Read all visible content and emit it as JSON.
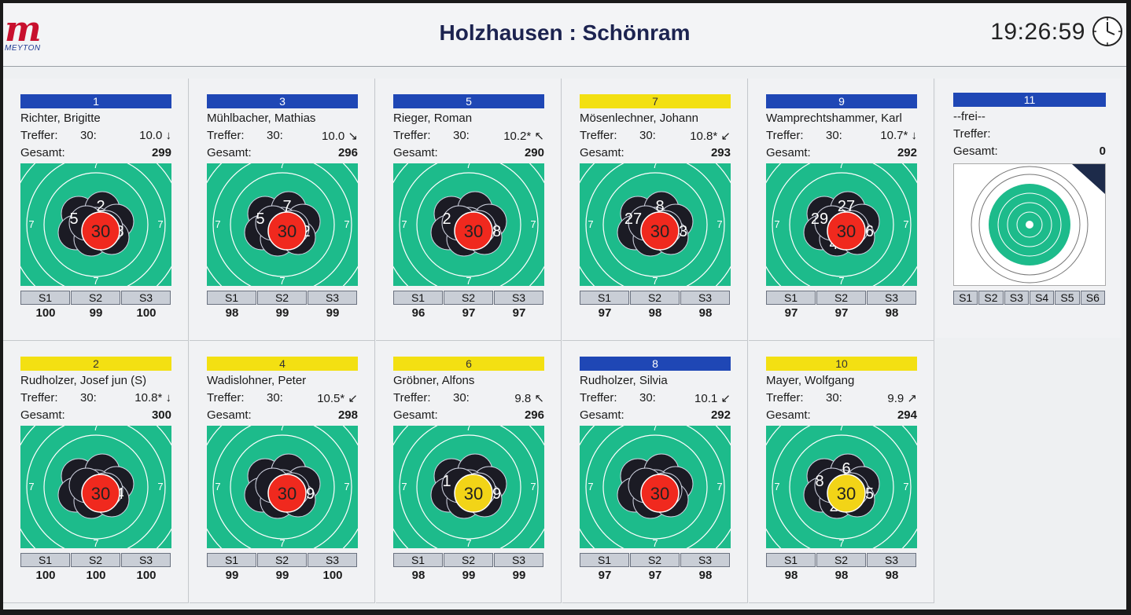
{
  "header": {
    "logo_letter": "m",
    "logo_text": "MEYTON",
    "title": "Holzhausen : Schönram",
    "clock": "19:26:59"
  },
  "colors": {
    "blue_lane": "#1f47b5",
    "yellow_lane": "#f3e012",
    "target_green": "#1dbb8b",
    "shot_dark": "#1b1b24",
    "shot_red": "#f0291e",
    "shot_yellow": "#f2d417"
  },
  "labels": {
    "treffer": "Treffer:",
    "gesamt": "Gesamt:"
  },
  "lanes": [
    {
      "lane": "1",
      "color": "blue",
      "name": "Richter, Brigitte",
      "count": "30:",
      "last": "10.0",
      "arrow": "↓",
      "total": "299",
      "series": [
        "S1",
        "S2",
        "S3"
      ],
      "scores": [
        "100",
        "99",
        "100"
      ],
      "shot_numbers": [
        "30",
        "8",
        "5",
        "2"
      ],
      "last_shot": "30",
      "last_color": "red"
    },
    {
      "lane": "3",
      "color": "blue",
      "name": "Mühlbacher, Mathias",
      "count": "30:",
      "last": "10.0",
      "arrow": "↘",
      "total": "296",
      "series": [
        "S1",
        "S2",
        "S3"
      ],
      "scores": [
        "98",
        "99",
        "99"
      ],
      "shot_numbers": [
        "30",
        "2",
        "5",
        "7"
      ],
      "last_shot": "30",
      "last_color": "red"
    },
    {
      "lane": "5",
      "color": "blue",
      "name": "Rieger, Roman",
      "count": "30:",
      "last": "10.2*",
      "arrow": "↖",
      "total": "290",
      "series": [
        "S1",
        "S2",
        "S3"
      ],
      "scores": [
        "96",
        "97",
        "97"
      ],
      "shot_numbers": [
        "30",
        "28",
        "2"
      ],
      "last_shot": "30",
      "last_color": "red"
    },
    {
      "lane": "7",
      "color": "yellow",
      "name": "Mösenlechner, Johann",
      "count": "30:",
      "last": "10.8*",
      "arrow": "↙",
      "total": "293",
      "series": [
        "S1",
        "S2",
        "S3"
      ],
      "scores": [
        "97",
        "98",
        "98"
      ],
      "shot_numbers": [
        "30",
        "23",
        "27",
        "8"
      ],
      "last_shot": "30",
      "last_color": "red"
    },
    {
      "lane": "9",
      "color": "blue",
      "name": "Wamprechtshammer, Karl",
      "count": "30:",
      "last": "10.7*",
      "arrow": "↓",
      "total": "292",
      "series": [
        "S1",
        "S2",
        "S3"
      ],
      "scores": [
        "97",
        "97",
        "98"
      ],
      "shot_numbers": [
        "30",
        "26",
        "29",
        "27",
        "4"
      ],
      "last_shot": "30",
      "last_color": "red"
    },
    {
      "lane": "2",
      "color": "yellow",
      "name": "Rudholzer, Josef jun (S)",
      "count": "30:",
      "last": "10.8*",
      "arrow": "↓",
      "total": "300",
      "series": [
        "S1",
        "S2",
        "S3"
      ],
      "scores": [
        "100",
        "100",
        "100"
      ],
      "shot_numbers": [
        "30",
        "4"
      ],
      "last_shot": "30",
      "last_color": "red"
    },
    {
      "lane": "4",
      "color": "yellow",
      "name": "Wadislohner, Peter",
      "count": "30:",
      "last": "10.5*",
      "arrow": "↙",
      "total": "298",
      "series": [
        "S1",
        "S2",
        "S3"
      ],
      "scores": [
        "99",
        "99",
        "100"
      ],
      "shot_numbers": [
        "30",
        "29"
      ],
      "last_shot": "30",
      "last_color": "red"
    },
    {
      "lane": "6",
      "color": "yellow",
      "name": "Gröbner, Alfons",
      "count": "30:",
      "last": "9.8",
      "arrow": "↖",
      "total": "296",
      "series": [
        "S1",
        "S2",
        "S3"
      ],
      "scores": [
        "98",
        "99",
        "99"
      ],
      "shot_numbers": [
        "30",
        "29",
        "1"
      ],
      "last_shot": "30",
      "last_color": "yellow"
    },
    {
      "lane": "8",
      "color": "blue",
      "name": "Rudholzer, Silvia",
      "count": "30:",
      "last": "10.1",
      "arrow": "↙",
      "total": "292",
      "series": [
        "S1",
        "S2",
        "S3"
      ],
      "scores": [
        "97",
        "97",
        "98"
      ],
      "shot_numbers": [
        "30"
      ],
      "last_shot": "30",
      "last_color": "red"
    },
    {
      "lane": "10",
      "color": "yellow",
      "name": "Mayer, Wolfgang",
      "count": "30:",
      "last": "9.9",
      "arrow": "↗",
      "total": "294",
      "series": [
        "S1",
        "S2",
        "S3"
      ],
      "scores": [
        "98",
        "98",
        "98"
      ],
      "shot_numbers": [
        "30",
        "25",
        "8",
        "6",
        "2"
      ],
      "last_shot": "30",
      "last_color": "yellow"
    }
  ],
  "free_lane": {
    "lane": "11",
    "color": "blue",
    "name": "--frei--",
    "total": "0",
    "series": [
      "S1",
      "S2",
      "S3",
      "S4",
      "S5",
      "S6"
    ]
  }
}
